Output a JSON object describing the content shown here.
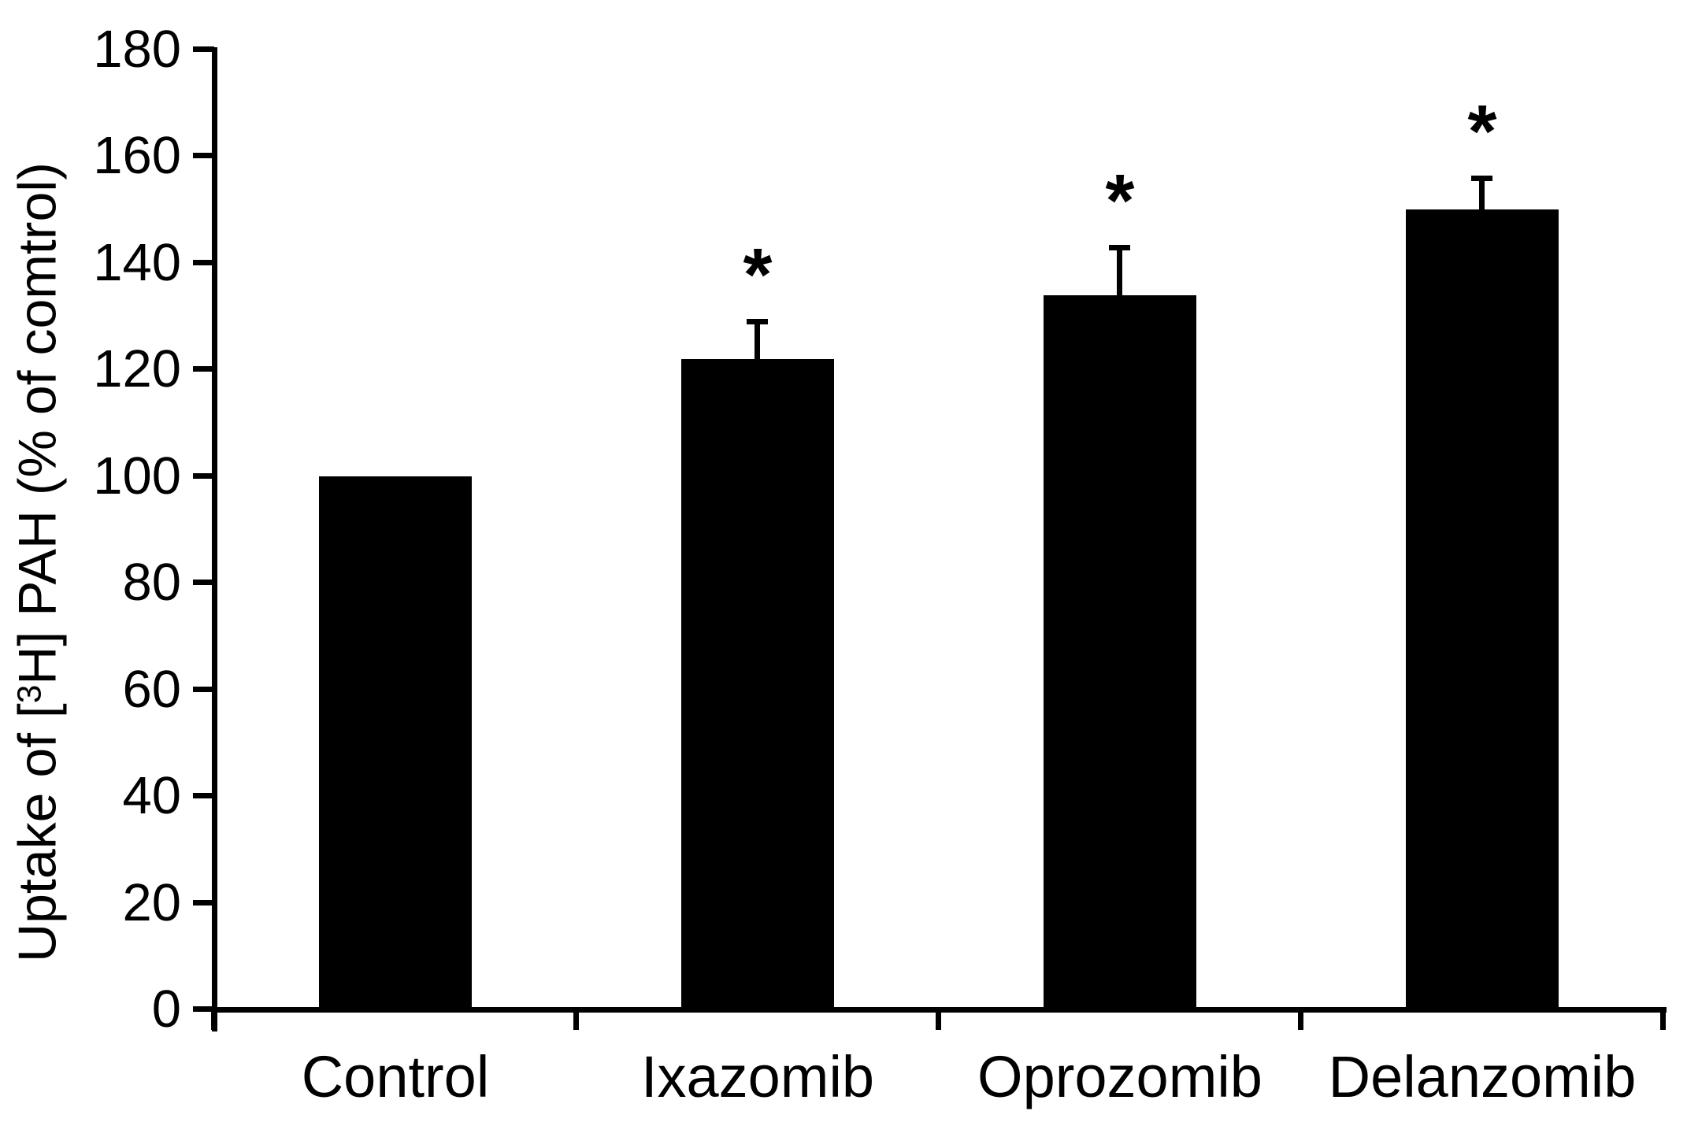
{
  "figure": {
    "background": "#ffffff",
    "bar_color": "#000000",
    "axis_color": "#000000",
    "text_color": "#000000"
  },
  "chart_data": {
    "type": "bar",
    "title": "",
    "xlabel": "",
    "ylabel": "Uptake of [3H] PAH (% of comtrol)",
    "ylabel_parts": {
      "prefix": "Uptake of [",
      "superscript": "3",
      "suffix": "H] PAH (% of comtrol)"
    },
    "categories": [
      "Control",
      "Ixazomib",
      "Oprozomib",
      "Delanzomib"
    ],
    "values": [
      100,
      122,
      134,
      150
    ],
    "error_plus": [
      0,
      7,
      9,
      6
    ],
    "significance": [
      "",
      "*",
      "*",
      "*"
    ],
    "ylim": [
      0,
      180
    ],
    "yticks": [
      0,
      20,
      40,
      60,
      80,
      100,
      120,
      140,
      160,
      180
    ],
    "grid": false,
    "legend": "none",
    "bar_fill": "#000000",
    "error_bar_style": "upper-only-with-cap"
  }
}
